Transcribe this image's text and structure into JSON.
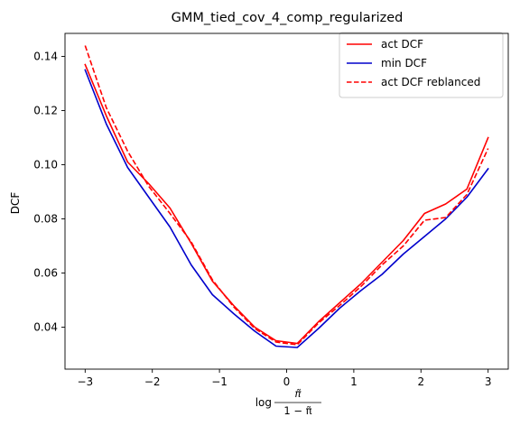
{
  "chart_data": {
    "type": "line",
    "title": "GMM_tied_cov_4_comp_regularized",
    "xlabel": "log π̃ / (1 − π̃)",
    "ylabel": "DCF",
    "xlim": [
      -3.3,
      3.3
    ],
    "ylim": [
      0.0245,
      0.1485
    ],
    "x_ticks": [
      -3,
      -2,
      -1,
      0,
      1,
      2,
      3
    ],
    "x_tick_labels": [
      "−3",
      "−2",
      "−1",
      "0",
      "1",
      "2",
      "3"
    ],
    "y_ticks": [
      0.04,
      0.06,
      0.08,
      0.1,
      0.12,
      0.14
    ],
    "y_tick_labels": [
      "0.04",
      "0.06",
      "0.08",
      "0.10",
      "0.12",
      "0.14"
    ],
    "grid": false,
    "legend_position": "top-right",
    "x": [
      -3.0,
      -2.684,
      -2.368,
      -2.053,
      -1.737,
      -1.421,
      -1.105,
      -0.789,
      -0.474,
      -0.158,
      0.158,
      0.474,
      0.789,
      1.105,
      1.421,
      1.737,
      2.053,
      2.368,
      2.684,
      3.0
    ],
    "series": [
      {
        "name": "act DCF",
        "color": "#ff0000",
        "style": "solid",
        "values": [
          0.137,
          0.118,
          0.101,
          0.093,
          0.084,
          0.071,
          0.057,
          0.048,
          0.04,
          0.035,
          0.034,
          0.042,
          0.049,
          0.056,
          0.064,
          0.072,
          0.082,
          0.0855,
          0.091,
          0.11
        ]
      },
      {
        "name": "min DCF",
        "color": "#0000cc",
        "style": "solid",
        "values": [
          0.135,
          0.115,
          0.099,
          0.088,
          0.077,
          0.063,
          0.052,
          0.045,
          0.0385,
          0.033,
          0.0325,
          0.0395,
          0.047,
          0.0535,
          0.0595,
          0.067,
          0.0735,
          0.08,
          0.088,
          0.0985
        ]
      },
      {
        "name": "act DCF reblanced",
        "color": "#ff0000",
        "style": "dashed",
        "values": [
          0.144,
          0.121,
          0.105,
          0.092,
          0.082,
          0.0715,
          0.0575,
          0.0475,
          0.0395,
          0.0345,
          0.0335,
          0.0415,
          0.048,
          0.055,
          0.063,
          0.07,
          0.0795,
          0.0805,
          0.089,
          0.106
        ]
      }
    ]
  }
}
